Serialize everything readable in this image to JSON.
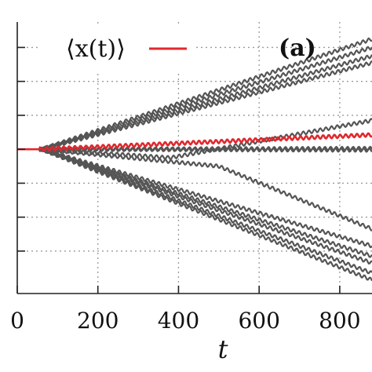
{
  "chart_data": {
    "type": "line",
    "xlabel": "t",
    "panel_label": "(a)",
    "legend": {
      "label": "⟨x(t)⟩",
      "color": "#e0282e",
      "placement": "top-left"
    },
    "xlim": [
      0,
      880
    ],
    "ylim": [
      -8.5,
      7.5
    ],
    "x_ticks": [
      0,
      200,
      400,
      600,
      800
    ],
    "x_tick_labels": [
      "0",
      "200",
      "400",
      "600",
      "800"
    ],
    "y_ticks": [
      -6,
      -4,
      -2,
      0,
      2,
      4,
      6
    ],
    "grid": true,
    "line_color": "#555555",
    "oscillation": {
      "period": 14,
      "amplitude": 0.1
    },
    "series": [
      {
        "x": [
          0,
          60,
          880
        ],
        "y": [
          0,
          0,
          6.5
        ]
      },
      {
        "x": [
          0,
          60,
          880
        ],
        "y": [
          0,
          0,
          6.0
        ]
      },
      {
        "x": [
          0,
          60,
          880
        ],
        "y": [
          0,
          0,
          5.5
        ]
      },
      {
        "x": [
          0,
          60,
          880
        ],
        "y": [
          0,
          0,
          5.1
        ]
      },
      {
        "x": [
          0,
          60,
          380,
          880
        ],
        "y": [
          0,
          0,
          -0.5,
          1.7
        ]
      },
      {
        "x": [
          0,
          60,
          880
        ],
        "y": [
          0,
          0,
          0.05
        ]
      },
      {
        "x": [
          0,
          60,
          880
        ],
        "y": [
          0,
          0,
          -0.05
        ]
      },
      {
        "x": [
          0,
          60,
          500,
          880
        ],
        "y": [
          0,
          0,
          -1.0,
          -4.7
        ]
      },
      {
        "x": [
          0,
          60,
          880
        ],
        "y": [
          0,
          0,
          -5.7
        ]
      },
      {
        "x": [
          0,
          60,
          880
        ],
        "y": [
          0,
          0,
          -6.3
        ]
      },
      {
        "x": [
          0,
          60,
          880
        ],
        "y": [
          0,
          0,
          -6.7
        ]
      },
      {
        "x": [
          0,
          60,
          880
        ],
        "y": [
          0,
          0,
          -7.3
        ]
      },
      {
        "x": [
          0,
          60,
          880
        ],
        "y": [
          0,
          0,
          -7.7
        ]
      }
    ],
    "mean_series": {
      "x": [
        0,
        60,
        880
      ],
      "y": [
        0,
        0,
        0.85
      ]
    }
  }
}
